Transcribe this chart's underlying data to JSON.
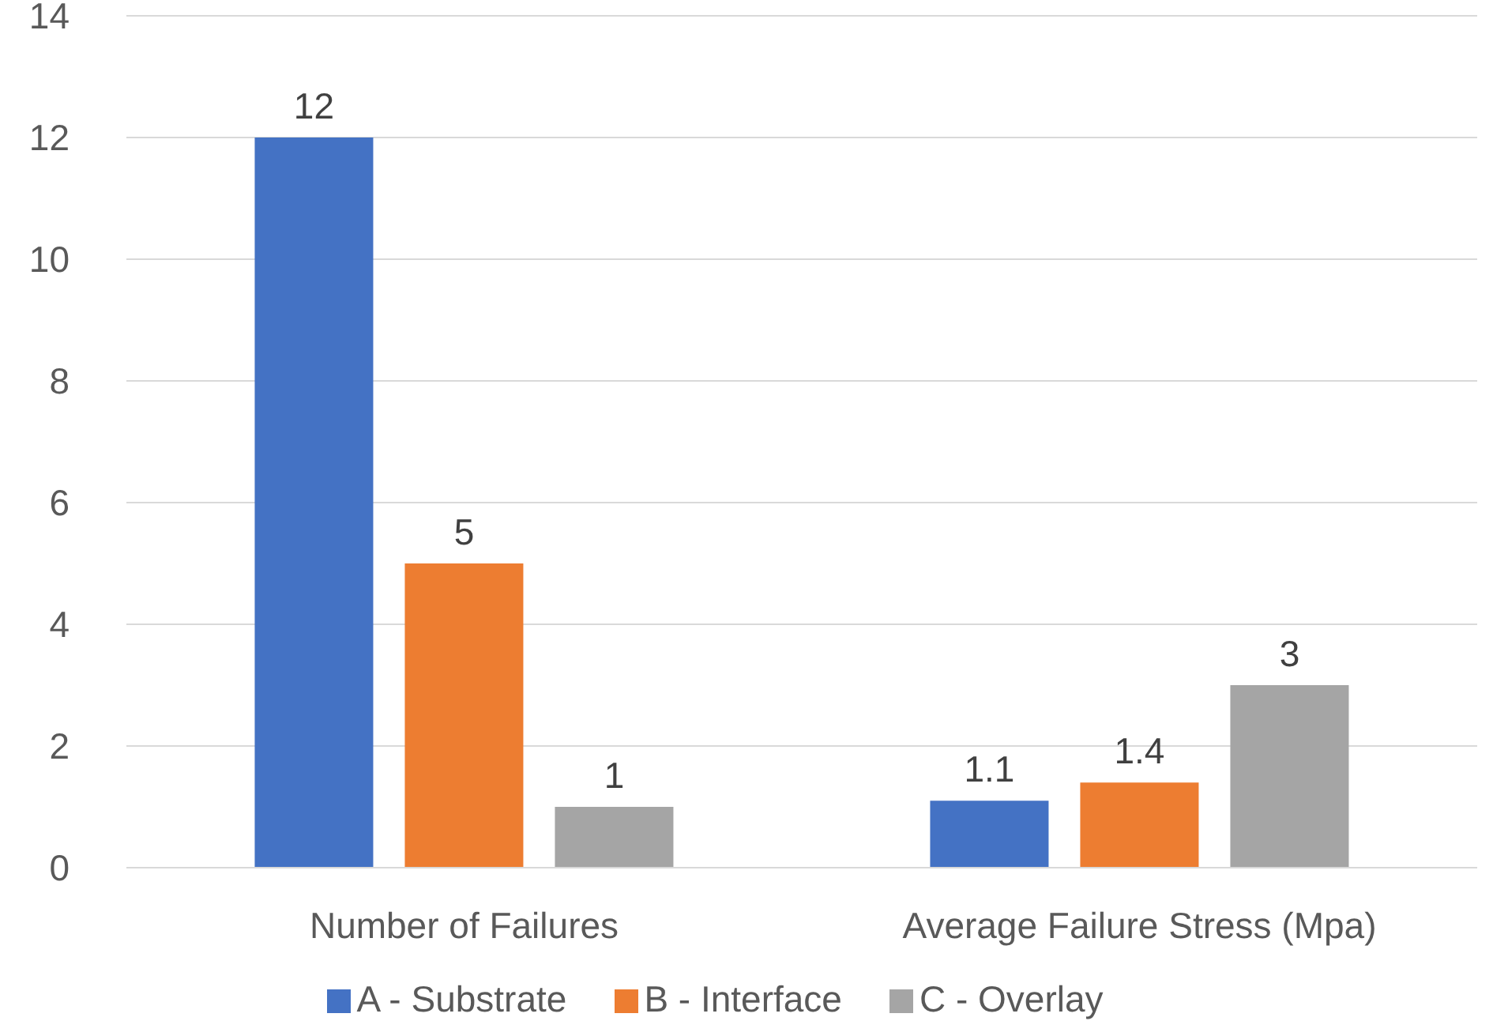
{
  "chart_data": {
    "type": "bar",
    "categories": [
      "Number of Failures",
      "Average Failure Stress (Mpa)"
    ],
    "series": [
      {
        "name": "A - Substrate",
        "color": "#4472c4",
        "values": [
          12,
          1.1
        ]
      },
      {
        "name": "B - Interface",
        "color": "#ed7d31",
        "values": [
          5,
          1.4
        ]
      },
      {
        "name": "C - Overlay",
        "color": "#a5a5a5",
        "values": [
          1,
          3
        ]
      }
    ],
    "ylim": [
      0,
      14
    ],
    "yticks": [
      0,
      2,
      4,
      6,
      8,
      10,
      12,
      14
    ],
    "grid": "y",
    "legend": "bottom",
    "data_labels": true
  }
}
